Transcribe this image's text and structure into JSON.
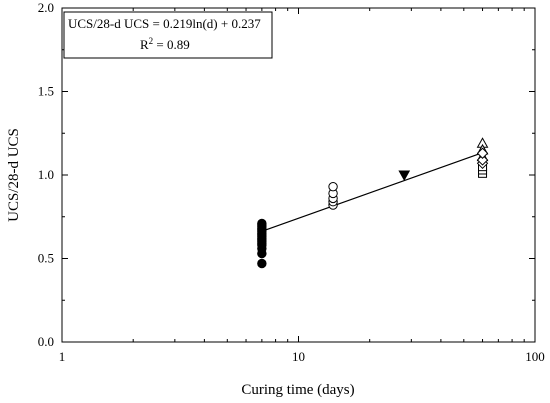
{
  "chart_data": {
    "type": "scatter",
    "xscale": "log",
    "xlim": [
      1,
      100
    ],
    "ylim": [
      0.0,
      2.0
    ],
    "xlabel": "Curing time (days)",
    "ylabel": "UCS/28-d UCS",
    "x_ticks": [
      1,
      10,
      100
    ],
    "x_tick_labels": [
      "1",
      "10",
      "100"
    ],
    "y_ticks": [
      0.0,
      0.5,
      1.0,
      1.5,
      2.0
    ],
    "y_tick_labels": [
      "0.0",
      "0.5",
      "1.0",
      "1.5",
      "2.0"
    ],
    "grid": false,
    "annotation": {
      "equation": "UCS/28-d UCS = 0.219ln(d) + 0.237",
      "r2_prefix": "R",
      "r2_sup": "2",
      "r2_suffix": " = 0.89"
    },
    "fit_line": {
      "x": [
        7,
        60
      ]
    },
    "series": [
      {
        "marker": "filled-circle",
        "points": [
          [
            7,
            0.47
          ],
          [
            7,
            0.53
          ],
          [
            7,
            0.56
          ],
          [
            7,
            0.58
          ],
          [
            7,
            0.59
          ],
          [
            7,
            0.6
          ],
          [
            7,
            0.61
          ],
          [
            7,
            0.62
          ],
          [
            7,
            0.63
          ],
          [
            7,
            0.64
          ],
          [
            7,
            0.65
          ],
          [
            7,
            0.66
          ],
          [
            7,
            0.67
          ],
          [
            7,
            0.68
          ],
          [
            7,
            0.69
          ],
          [
            7,
            0.7
          ],
          [
            7,
            0.71
          ]
        ]
      },
      {
        "marker": "open-circle",
        "points": [
          [
            14,
            0.82
          ],
          [
            14,
            0.84
          ],
          [
            14,
            0.86
          ],
          [
            14,
            0.89
          ],
          [
            14,
            0.93
          ]
        ]
      },
      {
        "marker": "filled-triangle-down",
        "points": [
          [
            28,
            1.0
          ]
        ]
      },
      {
        "marker": "open-triangle-up",
        "points": [
          [
            60,
            1.19
          ],
          [
            60,
            1.15
          ],
          [
            60,
            1.11
          ]
        ]
      },
      {
        "marker": "open-square",
        "points": [
          [
            60,
            1.01
          ],
          [
            60,
            1.03
          ],
          [
            60,
            1.05
          ]
        ]
      },
      {
        "marker": "open-diamond",
        "points": [
          [
            60,
            1.07
          ],
          [
            60,
            1.09
          ],
          [
            60,
            1.13
          ]
        ]
      }
    ]
  }
}
